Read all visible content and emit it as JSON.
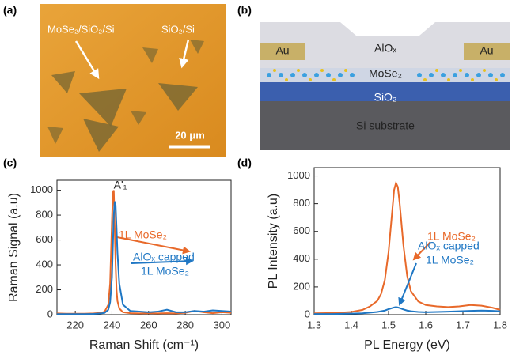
{
  "panels": {
    "a": {
      "label": "(a)",
      "annotations": [
        "MoSe₂/SiO₂/Si",
        "SiO₂/Si"
      ],
      "scale_bar": "20 μm"
    },
    "b": {
      "label": "(b)",
      "layers": [
        "Au",
        "AlOₓ",
        "Au",
        "MoSe₂",
        "SiO₂",
        "Si substrate"
      ]
    },
    "c": {
      "label": "(c)"
    },
    "d": {
      "label": "(d)"
    }
  },
  "chart_data": [
    {
      "type": "line",
      "x_label": "Raman Shift (cm⁻¹)",
      "y_label": "Raman Signal (a.u)",
      "peak_label": "A'₁",
      "xlim": [
        210,
        305
      ],
      "xticks": [
        220,
        240,
        260,
        280,
        300
      ],
      "ylim": [
        0,
        1080
      ],
      "yticks": [
        0,
        200,
        400,
        600,
        800,
        1000
      ],
      "x": [
        210,
        215,
        220,
        225,
        230,
        234,
        236,
        238,
        239,
        240,
        240.5,
        241,
        241.5,
        242,
        242.5,
        243,
        244,
        246,
        250,
        255,
        260,
        265,
        270,
        275,
        280,
        285,
        290,
        295,
        300,
        305
      ],
      "series": [
        {
          "name_lines": [
            "1L MoSe₂"
          ],
          "color": "#e8692a",
          "values": [
            10,
            8,
            8,
            8,
            10,
            15,
            25,
            80,
            250,
            750,
            980,
            1000,
            700,
            400,
            200,
            110,
            50,
            20,
            12,
            10,
            12,
            10,
            12,
            10,
            15,
            30,
            20,
            12,
            20,
            15
          ]
        },
        {
          "name_lines": [
            "AlOₓ  capped",
            "1L MoSe₂"
          ],
          "color": "#1f77c4",
          "values": [
            5,
            5,
            5,
            5,
            6,
            10,
            15,
            40,
            100,
            300,
            550,
            800,
            910,
            880,
            700,
            500,
            250,
            80,
            30,
            25,
            20,
            25,
            40,
            20,
            20,
            30,
            25,
            35,
            30,
            25
          ]
        }
      ]
    },
    {
      "type": "line",
      "x_label": "PL Energy (eV)",
      "y_label": "PL Intensity (a.u)",
      "xlim": [
        1.3,
        1.8
      ],
      "xticks": [
        1.3,
        1.4,
        1.5,
        1.6,
        1.7,
        1.8
      ],
      "ylim": [
        0,
        1060
      ],
      "yticks": [
        0,
        200,
        400,
        600,
        800,
        1000
      ],
      "x": [
        1.3,
        1.35,
        1.4,
        1.43,
        1.45,
        1.47,
        1.48,
        1.49,
        1.5,
        1.51,
        1.515,
        1.52,
        1.525,
        1.53,
        1.54,
        1.55,
        1.56,
        1.58,
        1.6,
        1.63,
        1.66,
        1.69,
        1.72,
        1.75,
        1.78,
        1.8
      ],
      "series": [
        {
          "name_lines": [
            "1L MoSe₂"
          ],
          "color": "#e8692a",
          "values": [
            10,
            12,
            20,
            35,
            60,
            100,
            150,
            250,
            450,
            750,
            900,
            950,
            920,
            800,
            500,
            280,
            170,
            95,
            70,
            60,
            55,
            60,
            70,
            65,
            50,
            35
          ]
        },
        {
          "name_lines": [
            "AlOₓ capped",
            "1L MoSe₂"
          ],
          "color": "#1f77c4",
          "values": [
            5,
            5,
            8,
            10,
            15,
            20,
            25,
            30,
            40,
            48,
            52,
            55,
            52,
            48,
            38,
            30,
            25,
            20,
            18,
            20,
            22,
            25,
            28,
            30,
            28,
            25
          ]
        }
      ]
    }
  ]
}
